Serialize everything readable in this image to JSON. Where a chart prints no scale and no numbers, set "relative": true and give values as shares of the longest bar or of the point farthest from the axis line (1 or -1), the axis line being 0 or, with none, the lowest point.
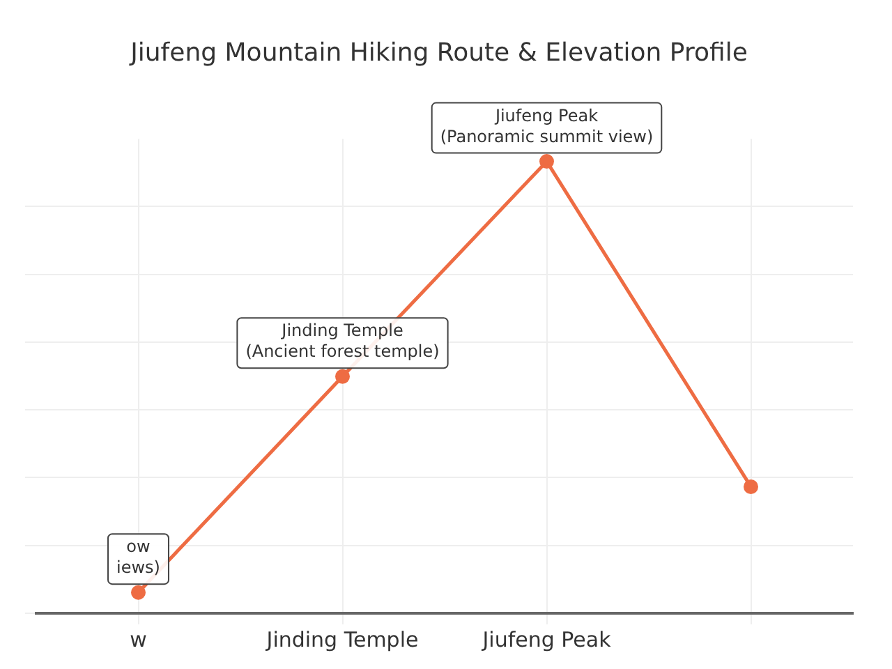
{
  "chart_data": {
    "type": "line",
    "title": "Jiufeng Mountain Hiking Route & Elevation Profile",
    "categories": [
      "w",
      "Jinding Temple",
      "Jiufeng Peak",
      null
    ],
    "series": [
      {
        "color": "#ee6c43",
        "values": [
          0.046,
          0.524,
          1,
          0.28
        ]
      }
    ],
    "relative": true,
    "grid": true,
    "marker": "circle",
    "line_style": "solid",
    "legend": false,
    "annotations": [
      {
        "text": "ow\niews)",
        "x": "w",
        "y": 0.046
      },
      {
        "text": "Jinding Temple\n(Ancient forest temple)",
        "x": "Jinding Temple",
        "y": 0.524
      },
      {
        "text": "Jiufeng Peak\n(Panoramic summit view)",
        "x": "Jiufeng Peak",
        "y": 1
      }
    ]
  }
}
